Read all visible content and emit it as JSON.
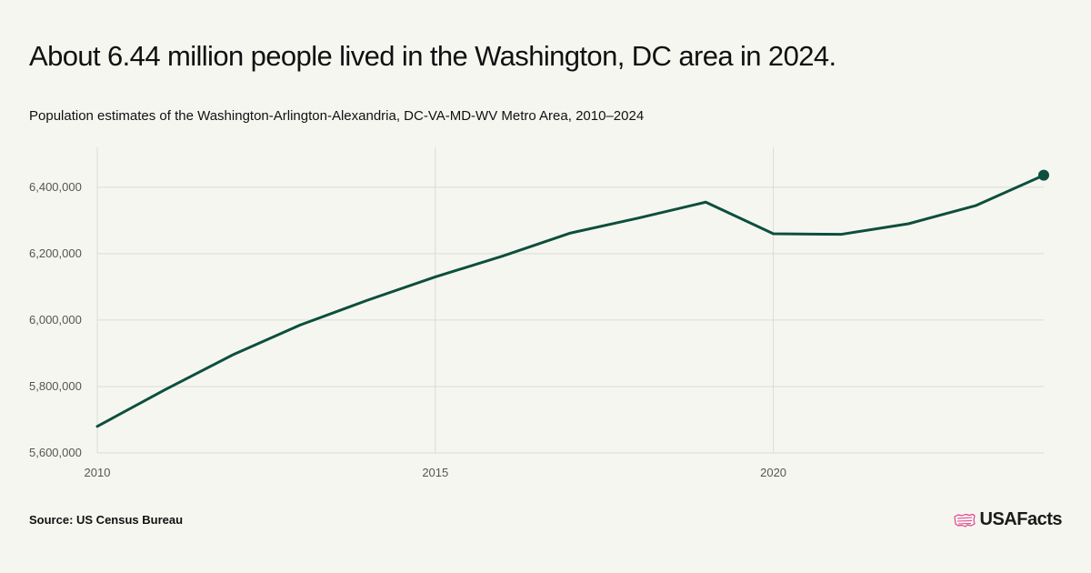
{
  "title": "About 6.44 million people lived in the Washington, DC area in 2024.",
  "subtitle": "Population estimates of the Washington-Arlington-Alexandria, DC-VA-MD-WV Metro Area, 2010–2024",
  "source": "Source: US Census Bureau",
  "logo": {
    "text": "USAFacts",
    "icon": "us-map-flag-icon"
  },
  "colors": {
    "line": "#0d4f3c",
    "grid": "#dcdcd6",
    "background": "#f6f6f1",
    "logo_accent": "#e0438f"
  },
  "chart_data": {
    "type": "line",
    "title": "",
    "xlabel": "",
    "ylabel": "",
    "x": [
      2010,
      2011,
      2012,
      2013,
      2014,
      2015,
      2016,
      2017,
      2018,
      2019,
      2020,
      2021,
      2022,
      2023,
      2024
    ],
    "series": [
      {
        "values": [
          5680000,
          5790000,
          5895000,
          5985000,
          6060000,
          6130000,
          6193000,
          6262000,
          6307000,
          6355000,
          6260000,
          6258000,
          6290000,
          6345000,
          6436000
        ]
      }
    ],
    "xlim": [
      2010,
      2024
    ],
    "ylim": [
      5600000,
      6520000
    ],
    "x_ticks": [
      2010,
      2015,
      2020
    ],
    "x_tick_labels": [
      "2010",
      "2015",
      "2020"
    ],
    "y_ticks": [
      5600000,
      5800000,
      6000000,
      6200000,
      6400000
    ],
    "y_tick_labels": [
      "5,600,000",
      "5,800,000",
      "6,000,000",
      "6,200,000",
      "6,400,000"
    ],
    "highlight_last_point": true,
    "grid": true,
    "legend": "none"
  }
}
